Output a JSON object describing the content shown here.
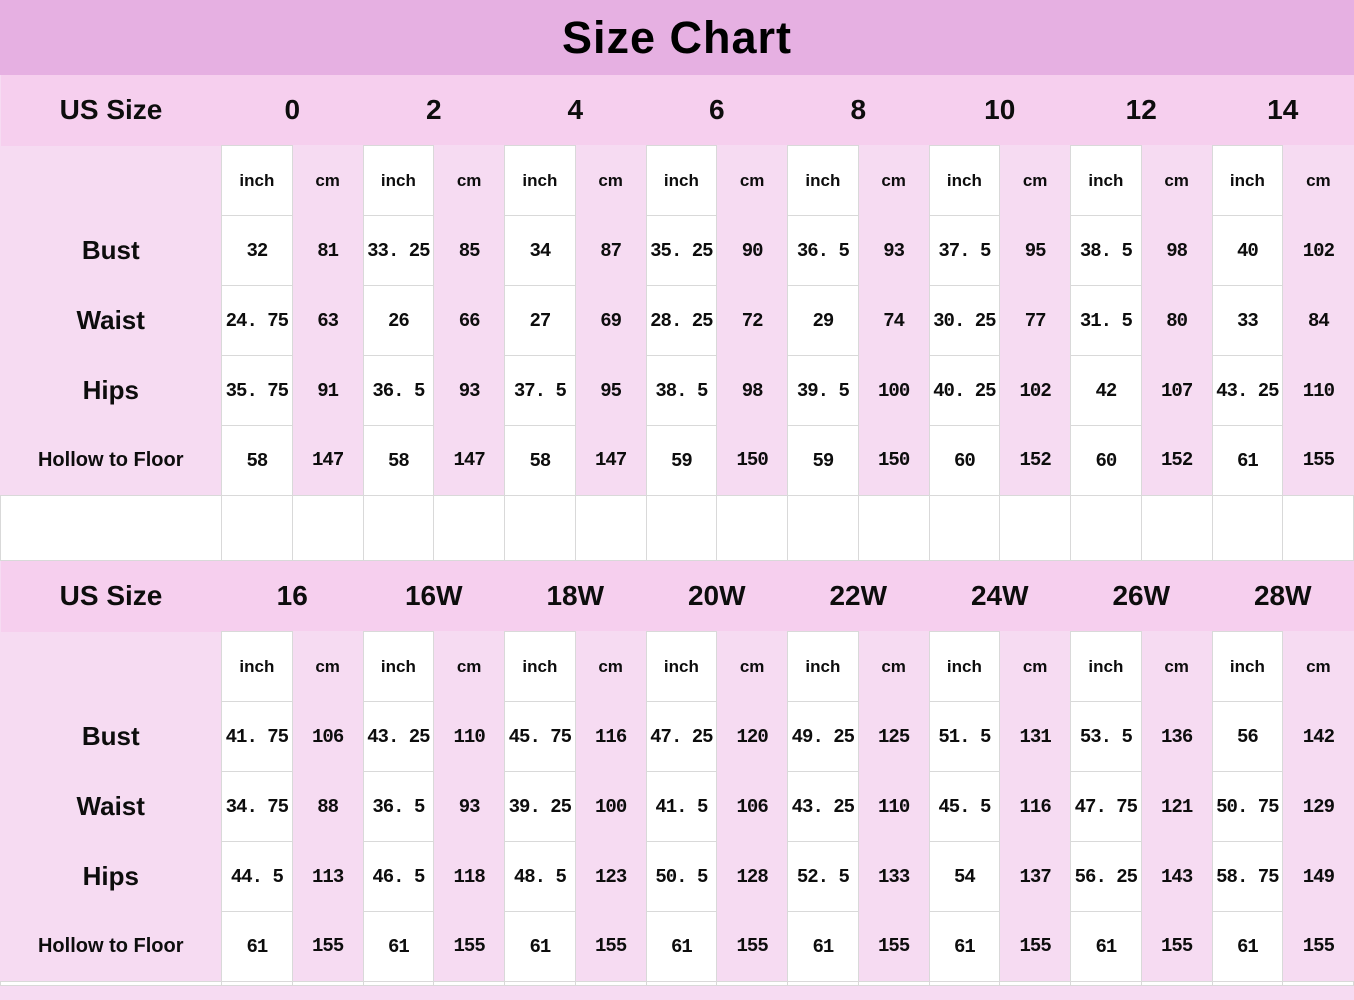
{
  "title": "Size Chart",
  "us_size_label": "US Size",
  "unit_labels": [
    "inch",
    "cm"
  ],
  "colors": {
    "title_band": "#e6b0e2",
    "us_size_band": "#f6cfee",
    "body_pink": "#f6dbf2",
    "cell_white": "#ffffff",
    "cell_border": "#d9d9d9",
    "text": "#0d0d0d"
  },
  "tables": [
    {
      "name": "regular-sizes",
      "sizes": [
        "0",
        "2",
        "4",
        "6",
        "8",
        "10",
        "12",
        "14"
      ],
      "rows": [
        {
          "label": "Bust",
          "values": [
            "32",
            "81",
            "33. 25",
            "85",
            "34",
            "87",
            "35. 25",
            "90",
            "36. 5",
            "93",
            "37. 5",
            "95",
            "38. 5",
            "98",
            "40",
            "102"
          ]
        },
        {
          "label": "Waist",
          "values": [
            "24. 75",
            "63",
            "26",
            "66",
            "27",
            "69",
            "28. 25",
            "72",
            "29",
            "74",
            "30. 25",
            "77",
            "31. 5",
            "80",
            "33",
            "84"
          ]
        },
        {
          "label": "Hips",
          "values": [
            "35. 75",
            "91",
            "36. 5",
            "93",
            "37. 5",
            "95",
            "38. 5",
            "98",
            "39. 5",
            "100",
            "40. 25",
            "102",
            "42",
            "107",
            "43. 25",
            "110"
          ]
        },
        {
          "label": "Hollow to Floor",
          "values": [
            "58",
            "147",
            "58",
            "147",
            "58",
            "147",
            "59",
            "150",
            "59",
            "150",
            "60",
            "152",
            "60",
            "152",
            "61",
            "155"
          ]
        }
      ]
    },
    {
      "name": "plus-sizes",
      "sizes": [
        "16",
        "16W",
        "18W",
        "20W",
        "22W",
        "24W",
        "26W",
        "28W"
      ],
      "rows": [
        {
          "label": "Bust",
          "values": [
            "41. 75",
            "106",
            "43. 25",
            "110",
            "45. 75",
            "116",
            "47. 25",
            "120",
            "49. 25",
            "125",
            "51. 5",
            "131",
            "53. 5",
            "136",
            "56",
            "142"
          ]
        },
        {
          "label": "Waist",
          "values": [
            "34. 75",
            "88",
            "36. 5",
            "93",
            "39. 25",
            "100",
            "41. 5",
            "106",
            "43. 25",
            "110",
            "45. 5",
            "116",
            "47. 75",
            "121",
            "50. 75",
            "129"
          ]
        },
        {
          "label": "Hips",
          "values": [
            "44. 5",
            "113",
            "46. 5",
            "118",
            "48. 5",
            "123",
            "50. 5",
            "128",
            "52. 5",
            "133",
            "54",
            "137",
            "56. 25",
            "143",
            "58. 75",
            "149"
          ]
        },
        {
          "label": "Hollow to Floor",
          "values": [
            "61",
            "155",
            "61",
            "155",
            "61",
            "155",
            "61",
            "155",
            "61",
            "155",
            "61",
            "155",
            "61",
            "155",
            "61",
            "155"
          ]
        }
      ]
    }
  ]
}
